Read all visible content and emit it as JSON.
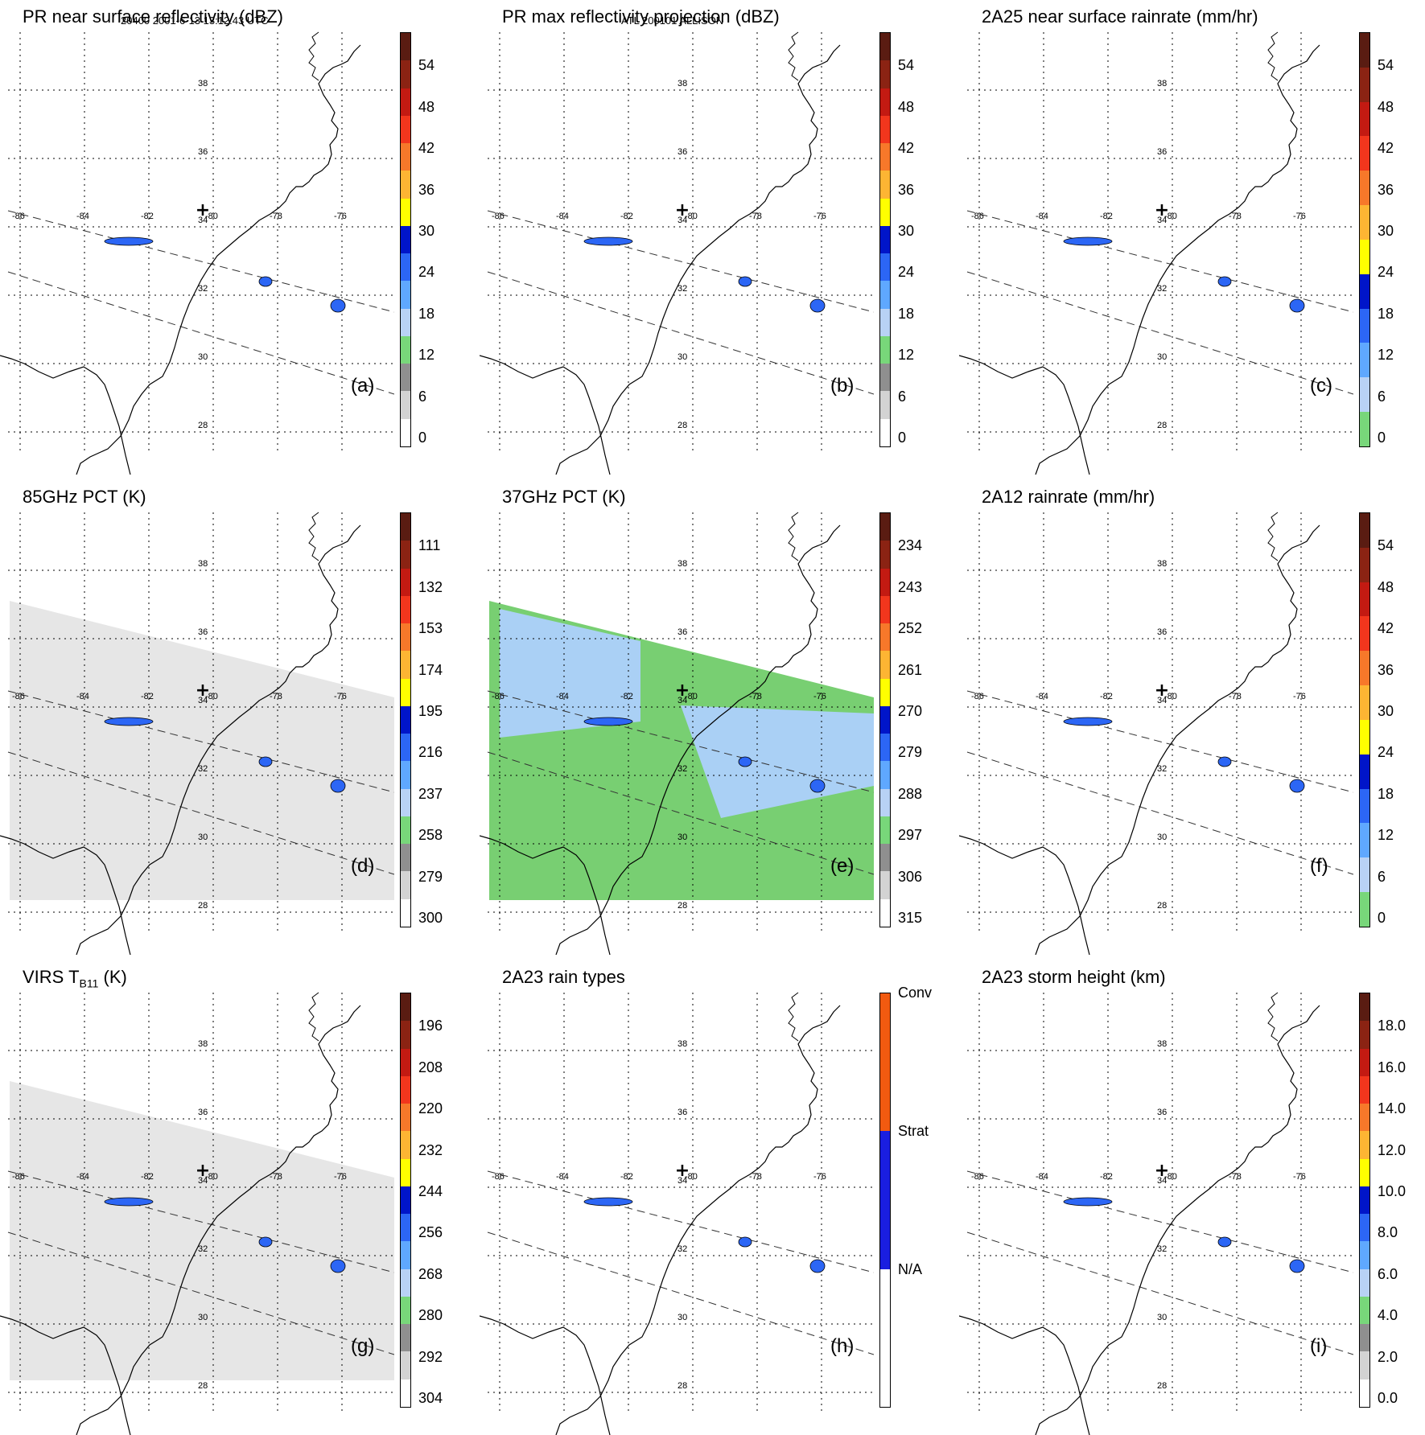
{
  "header": {
    "orbit_time": "20400 2001-6-13 13:12:43 UTC",
    "storm": "ATL 200101 ALLISON"
  },
  "map": {
    "lat_labels": [
      "38",
      "36",
      "34",
      "32",
      "30",
      "28"
    ],
    "lon_labels": [
      "-86",
      "-84",
      "-82",
      "-80",
      "-78",
      "-76"
    ],
    "center_marker": "+"
  },
  "panels": [
    {
      "id": "a",
      "title": "PR near surface reflectivity (dBZ)",
      "label": "(a)",
      "ticks": [
        "54",
        "48",
        "42",
        "36",
        "30",
        "24",
        "18",
        "12",
        "6",
        "0"
      ],
      "colorbar": [
        "#5a1c12",
        "#8b2313",
        "#c31a12",
        "#f2361d",
        "#f7782a",
        "#fdb533",
        "#ffff00",
        "#0015c9",
        "#2c66f5",
        "#5fa8ff",
        "#b8d2f5",
        "#78d77a",
        "#8f8f8f",
        "#d3d3d3",
        "#ffffff"
      ],
      "swath": "none"
    },
    {
      "id": "b",
      "title": "PR max reflectivity projection (dBZ)",
      "label": "(b)",
      "ticks": [
        "54",
        "48",
        "42",
        "36",
        "30",
        "24",
        "18",
        "12",
        "6",
        "0"
      ],
      "colorbar": [
        "#5a1c12",
        "#8b2313",
        "#c31a12",
        "#f2361d",
        "#f7782a",
        "#fdb533",
        "#ffff00",
        "#0015c9",
        "#2c66f5",
        "#5fa8ff",
        "#b8d2f5",
        "#78d77a",
        "#8f8f8f",
        "#d3d3d3",
        "#ffffff"
      ],
      "swath": "none"
    },
    {
      "id": "c",
      "title": "2A25 near surface rainrate (mm/hr)",
      "label": "(c)",
      "ticks": [
        "54",
        "48",
        "42",
        "36",
        "30",
        "24",
        "18",
        "12",
        "6",
        "0"
      ],
      "colorbar": [
        "#5a1c12",
        "#8b2313",
        "#c31a12",
        "#f2361d",
        "#f7782a",
        "#fdb533",
        "#ffff00",
        "#0015c9",
        "#2c66f5",
        "#5fa8ff",
        "#b8d2f5",
        "#78d77a"
      ],
      "swath": "none"
    },
    {
      "id": "d",
      "title": "85GHz PCT (K)",
      "label": "(d)",
      "ticks": [
        "111",
        "132",
        "153",
        "174",
        "195",
        "216",
        "237",
        "258",
        "279",
        "300"
      ],
      "colorbar": [
        "#5a1c12",
        "#8b2313",
        "#c31a12",
        "#f2361d",
        "#f7782a",
        "#fdb533",
        "#ffff00",
        "#0015c9",
        "#2c66f5",
        "#5fa8ff",
        "#b8d2f5",
        "#78d77a",
        "#8f8f8f",
        "#d3d3d3",
        "#ffffff"
      ],
      "swath": "grey"
    },
    {
      "id": "e",
      "title": "37GHz PCT (K)",
      "label": "(e)",
      "ticks": [
        "234",
        "243",
        "252",
        "261",
        "270",
        "279",
        "288",
        "297",
        "306",
        "315"
      ],
      "colorbar": [
        "#5a1c12",
        "#8b2313",
        "#c31a12",
        "#f2361d",
        "#f7782a",
        "#fdb533",
        "#ffff00",
        "#0015c9",
        "#2c66f5",
        "#5fa8ff",
        "#b8d2f5",
        "#78d77a",
        "#8f8f8f",
        "#d3d3d3",
        "#ffffff"
      ],
      "swath": "green"
    },
    {
      "id": "f",
      "title": "2A12 rainrate (mm/hr)",
      "label": "(f)",
      "ticks": [
        "54",
        "48",
        "42",
        "36",
        "30",
        "24",
        "18",
        "12",
        "6",
        "0"
      ],
      "colorbar": [
        "#5a1c12",
        "#8b2313",
        "#c31a12",
        "#f2361d",
        "#f7782a",
        "#fdb533",
        "#ffff00",
        "#0015c9",
        "#2c66f5",
        "#5fa8ff",
        "#b8d2f5",
        "#78d77a"
      ],
      "swath": "none"
    },
    {
      "id": "g",
      "title_main": "VIRS T",
      "title_sub": "B11",
      "title_tail": " (K)",
      "label": "(g)",
      "ticks": [
        "196",
        "208",
        "220",
        "232",
        "244",
        "256",
        "268",
        "280",
        "292",
        "304"
      ],
      "colorbar": [
        "#5a1c12",
        "#8b2313",
        "#c31a12",
        "#f2361d",
        "#f7782a",
        "#fdb533",
        "#ffff00",
        "#0015c9",
        "#2c66f5",
        "#5fa8ff",
        "#b8d2f5",
        "#78d77a",
        "#8f8f8f",
        "#d3d3d3",
        "#ffffff"
      ],
      "swath": "grey"
    },
    {
      "id": "h",
      "title": "2A23 rain types",
      "label": "(h)",
      "ticks": [
        "Conv",
        "Strat",
        "N/A"
      ],
      "colorbar": [
        "#f25a10",
        "#1a1ee0",
        "#ffffff"
      ],
      "swath": "none"
    },
    {
      "id": "i",
      "title": "2A23 storm height (km)",
      "label": "(i)",
      "ticks": [
        "18.0",
        "16.0",
        "14.0",
        "12.0",
        "10.0",
        "8.0",
        "6.0",
        "4.0",
        "2.0",
        "0.0"
      ],
      "colorbar": [
        "#5a1c12",
        "#8b2313",
        "#c31a12",
        "#f2361d",
        "#f7782a",
        "#fdb533",
        "#ffff00",
        "#0015c9",
        "#2c66f5",
        "#5fa8ff",
        "#b8d2f5",
        "#78d77a",
        "#8f8f8f",
        "#d3d3d3",
        "#ffffff"
      ],
      "swath": "none"
    }
  ]
}
